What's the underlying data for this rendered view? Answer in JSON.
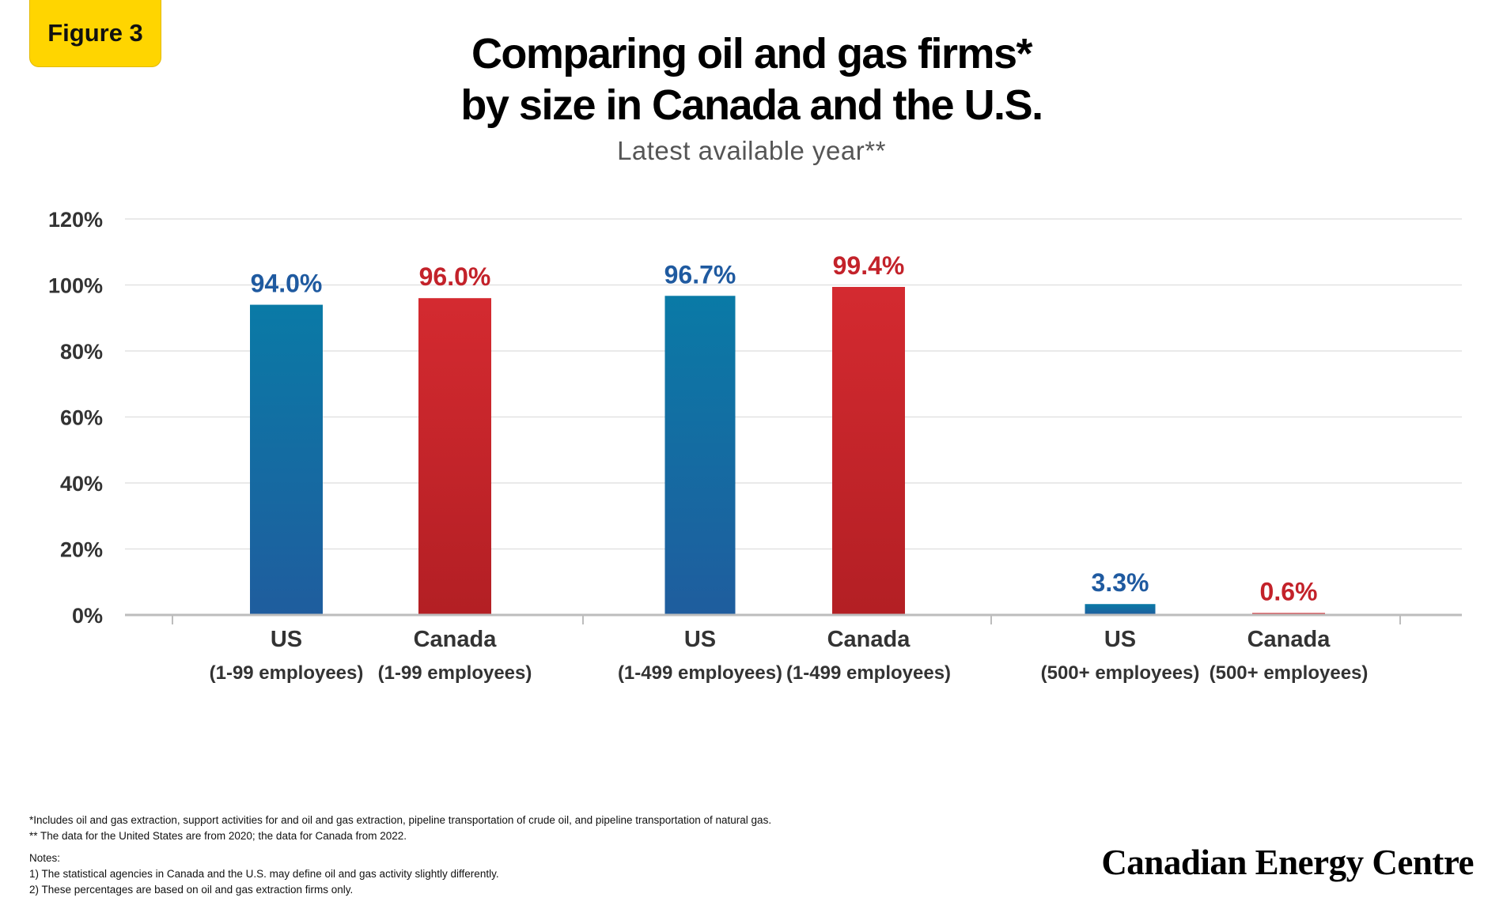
{
  "badge": "Figure 3",
  "title_line1": "Comparing oil and gas firms*",
  "title_line2": "by size in Canada and the U.S.",
  "subtitle": "Latest available year**",
  "chart_data": {
    "type": "bar",
    "yticks": [
      "0%",
      "20%",
      "40%",
      "60%",
      "80%",
      "100%",
      "120%"
    ],
    "ylim": [
      0,
      120
    ],
    "grid": true,
    "categories": [
      {
        "line1": "US",
        "line2": "(1-99 employees)"
      },
      {
        "line1": "Canada",
        "line2": "(1-99 employees)"
      },
      {
        "line1": "US",
        "line2": "(1-499 employees)"
      },
      {
        "line1": "Canada",
        "line2": "(1-499 employees)"
      },
      {
        "line1": "US",
        "line2": "(500+ employees)"
      },
      {
        "line1": "Canada",
        "line2": "(500+ employees)"
      }
    ],
    "values": [
      94.0,
      96.0,
      96.7,
      99.4,
      3.3,
      0.6
    ],
    "value_labels": [
      "94.0%",
      "96.0%",
      "96.7%",
      "99.4%",
      "3.3%",
      "0.6%"
    ],
    "colors": {
      "us_bar_top": "#0a7aa6",
      "us_bar_bottom": "#1f5d9e",
      "canada_bar_top": "#d42a30",
      "canada_bar_bottom": "#b31f24",
      "us_label": "#1f5aa0",
      "canada_label": "#c3222a"
    }
  },
  "notes": {
    "footnote1": "*Includes oil and gas extraction, support activities for and oil and gas extraction, pipeline transportation of crude oil, and pipeline transportation of natural gas.",
    "footnote2": "** The data for the United States are from 2020; the data for Canada from 2022.",
    "heading": "Notes:",
    "note1": "1) The statistical agencies in Canada and the U.S. may define oil and gas activity slightly differently.",
    "note2": "2) These percentages are based on oil and gas extraction firms only."
  },
  "brand": "Canadian Energy Centre"
}
